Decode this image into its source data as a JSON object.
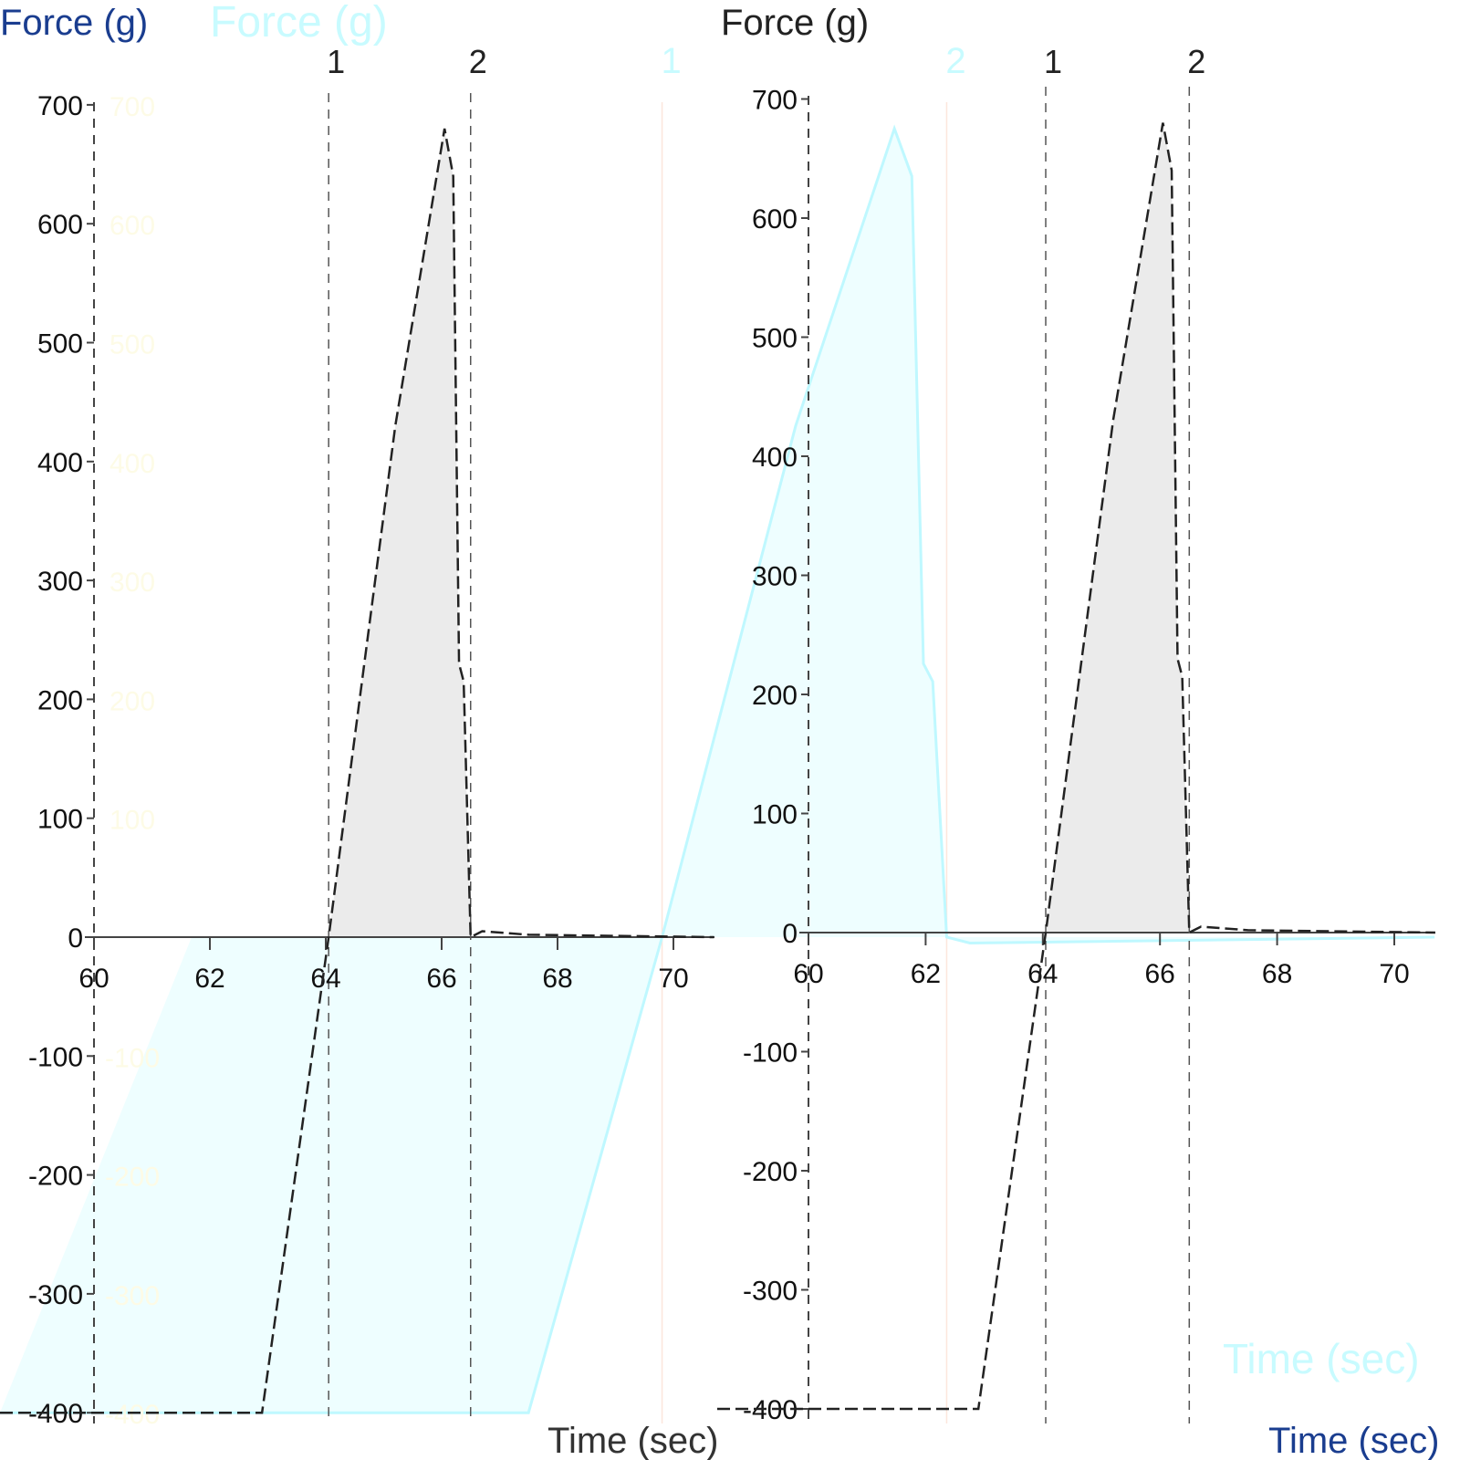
{
  "chart_data": [
    {
      "type": "area",
      "title": "",
      "ylabel": "Force (g)",
      "xlabel": "Time (sec)",
      "xlim": [
        60,
        70.7
      ],
      "ylim": [
        -400,
        700
      ],
      "xticks": [
        "60",
        "62",
        "64",
        "66",
        "68",
        "70"
      ],
      "yticks": [
        "700",
        "600",
        "500",
        "400",
        "300",
        "200",
        "100",
        "0",
        "-100",
        "-200",
        "-300",
        "-400"
      ],
      "markers": [
        {
          "label": "1",
          "x": 64.05
        },
        {
          "label": "2",
          "x": 66.5
        }
      ],
      "shaded_between_markers": true,
      "grid": false,
      "color": "#222222",
      "x": [
        60,
        62.9,
        64.05,
        65.2,
        66.05,
        66.2,
        66.3,
        66.38,
        66.5,
        66.7,
        67.5,
        70.7
      ],
      "y": [
        -400,
        -400,
        0,
        430,
        680,
        640,
        230,
        215,
        0,
        5,
        2,
        0
      ]
    },
    {
      "type": "area",
      "title": "",
      "ylabel": "Force (g)",
      "xlabel": "Time (sec)",
      "xlim": [
        60,
        70.7
      ],
      "ylim": [
        -400,
        700
      ],
      "xticks": [
        "60",
        "62",
        "64",
        "66",
        "68",
        "70"
      ],
      "yticks": [
        "700",
        "600",
        "500",
        "400",
        "300",
        "200",
        "100",
        "0",
        "-100",
        "-200",
        "-300",
        "-400"
      ],
      "markers": [
        {
          "label": "1",
          "x": 64.05
        },
        {
          "label": "2",
          "x": 66.5
        }
      ],
      "shaded_between_markers": true,
      "grid": false,
      "color": "#222222",
      "x": [
        60,
        62.9,
        64.05,
        65.2,
        66.05,
        66.2,
        66.3,
        66.38,
        66.5,
        66.7,
        67.5,
        70.7
      ],
      "y": [
        -400,
        -400,
        0,
        430,
        680,
        640,
        230,
        215,
        0,
        5,
        2,
        0
      ]
    },
    {
      "type": "area",
      "title": "",
      "ylabel": "Force (g)",
      "xlabel": "Time (sec)",
      "ylim": [
        -400,
        700
      ],
      "markers": [
        {
          "label": "1",
          "x": 64.05
        },
        {
          "label": "2",
          "x": 66.5
        }
      ],
      "color": "#bff8ff",
      "fill": "#eefeff",
      "x": [
        60,
        62.9,
        64.05,
        65.2,
        66.05,
        66.2,
        66.3,
        66.38,
        66.5,
        66.7,
        70.7
      ],
      "y": [
        -400,
        -400,
        0,
        430,
        680,
        640,
        230,
        215,
        0,
        -5,
        0
      ]
    }
  ]
}
